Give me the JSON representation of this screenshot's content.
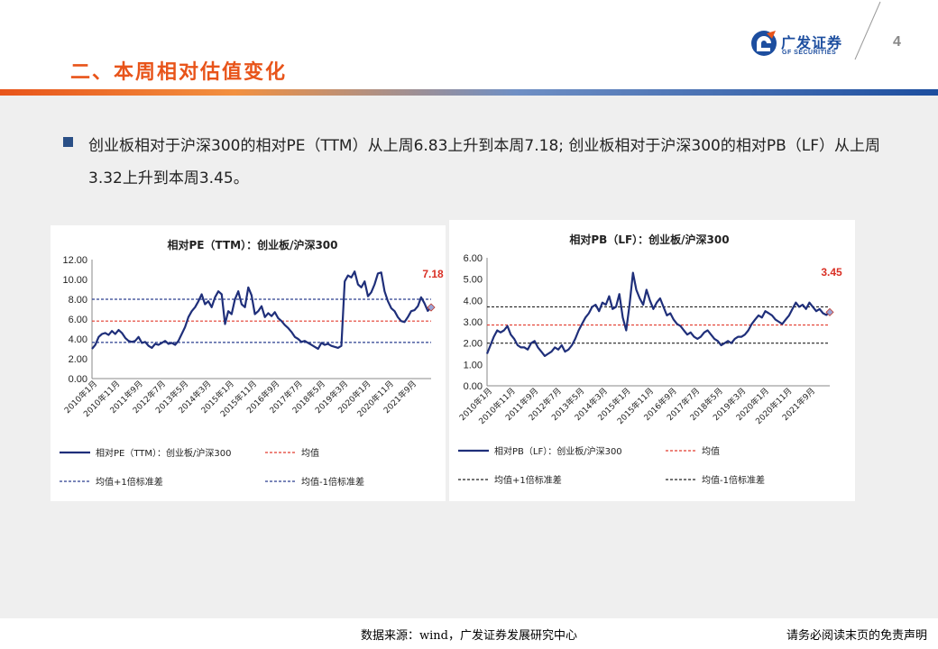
{
  "header": {
    "title": "二、本周相对估值变化",
    "logo_cn": "广发证券",
    "logo_en": "GF SECURITIES",
    "page_number": "4"
  },
  "bullet": {
    "text": "创业板相对于沪深300的相对PE（TTM）从上周6.83上升到本周7.18; 创业板相对于沪深300的相对PB（LF）从上周3.32上升到本周3.45。"
  },
  "footer": {
    "source": "数据来源：wind，广发证券发展研究中心",
    "disclaimer": "请务必阅读末页的免责声明"
  },
  "colors": {
    "brand_orange": "#e8541a",
    "brand_blue": "#1d4e9f",
    "series_navy": "#1f2f7a",
    "mean_red": "#e23b2e",
    "band_navy": "#2a3f8f",
    "band_black": "#222222"
  },
  "chart_data": [
    {
      "type": "line",
      "title": "相对PE（TTM）：创业板/沪深300",
      "x_ticks": [
        "2010年1月",
        "2010年11月",
        "2011年9月",
        "2012年7月",
        "2013年5月",
        "2014年3月",
        "2015年1月",
        "2015年11月",
        "2016年9月",
        "2017年7月",
        "2018年5月",
        "2019年3月",
        "2020年1月",
        "2020年11月",
        "2021年9月"
      ],
      "y_ticks": [
        "0.00",
        "2.00",
        "4.00",
        "6.00",
        "8.00",
        "10.00",
        "12.00"
      ],
      "ylim": [
        0,
        12
      ],
      "last_label": "7.18",
      "last_value": 7.18,
      "mean": 5.8,
      "upper": 8.0,
      "lower": 3.65,
      "series": {
        "name": "相对PE（TTM）：创业板/沪深300",
        "values": [
          3.0,
          3.4,
          4.2,
          4.5,
          4.6,
          4.4,
          4.8,
          4.5,
          4.9,
          4.6,
          4.1,
          3.8,
          3.7,
          3.8,
          4.2,
          3.6,
          3.7,
          3.3,
          3.1,
          3.5,
          3.4,
          3.6,
          3.8,
          3.5,
          3.6,
          3.4,
          3.8,
          4.5,
          5.2,
          6.2,
          6.8,
          7.2,
          7.8,
          8.5,
          7.5,
          7.8,
          7.2,
          8.2,
          8.8,
          8.5,
          5.5,
          6.8,
          6.5,
          8.0,
          8.8,
          7.5,
          7.2,
          9.2,
          8.4,
          6.5,
          6.8,
          7.3,
          6.2,
          6.6,
          6.3,
          6.7,
          6.1,
          5.8,
          5.4,
          5.1,
          4.7,
          4.2,
          4.0,
          3.7,
          3.8,
          3.6,
          3.4,
          3.2,
          3.0,
          3.6,
          3.4,
          3.5,
          3.3,
          3.2,
          3.1,
          3.3,
          9.8,
          10.4,
          10.2,
          10.8,
          9.5,
          9.2,
          9.8,
          8.3,
          8.7,
          9.5,
          10.6,
          10.7,
          8.8,
          7.8,
          7.1,
          6.8,
          6.2,
          5.8,
          5.7,
          6.2,
          6.8,
          6.9,
          7.3,
          8.2,
          7.6,
          6.83,
          7.18
        ]
      },
      "legend": [
        "相对PE（TTM）：创业板/沪深300",
        "均值",
        "均值+1倍标准差",
        "均值-1倍标准差"
      ]
    },
    {
      "type": "line",
      "title": "相对PB（LF）：创业板/沪深300",
      "x_ticks": [
        "2010年1月",
        "2010年11月",
        "2011年9月",
        "2012年7月",
        "2013年5月",
        "2014年3月",
        "2015年1月",
        "2015年11月",
        "2016年9月",
        "2017年7月",
        "2018年5月",
        "2019年3月",
        "2020年1月",
        "2020年11月",
        "2021年9月"
      ],
      "y_ticks": [
        "0.00",
        "1.00",
        "2.00",
        "3.00",
        "4.00",
        "5.00",
        "6.00"
      ],
      "ylim": [
        0,
        6
      ],
      "last_label": "3.45",
      "last_value": 3.45,
      "mean": 2.85,
      "upper": 3.7,
      "lower": 2.0,
      "series": {
        "name": "相对PB（LF）：创业板/沪深300",
        "values": [
          1.5,
          1.9,
          2.3,
          2.6,
          2.5,
          2.6,
          2.8,
          2.4,
          2.2,
          1.9,
          1.8,
          1.8,
          1.7,
          2.0,
          2.1,
          1.8,
          1.6,
          1.4,
          1.5,
          1.6,
          1.8,
          1.7,
          1.9,
          1.6,
          1.7,
          1.9,
          2.2,
          2.6,
          2.9,
          3.2,
          3.4,
          3.7,
          3.8,
          3.5,
          3.9,
          3.8,
          4.2,
          3.6,
          3.7,
          4.3,
          3.2,
          2.6,
          3.8,
          5.3,
          4.5,
          4.1,
          3.8,
          4.5,
          4.0,
          3.6,
          3.9,
          4.1,
          3.7,
          3.3,
          3.4,
          3.1,
          2.9,
          2.8,
          2.6,
          2.4,
          2.5,
          2.3,
          2.2,
          2.3,
          2.5,
          2.6,
          2.4,
          2.2,
          2.1,
          1.9,
          2.0,
          2.1,
          2.0,
          2.2,
          2.3,
          2.3,
          2.4,
          2.6,
          2.9,
          3.1,
          3.3,
          3.2,
          3.5,
          3.4,
          3.3,
          3.1,
          3.0,
          2.9,
          3.1,
          3.3,
          3.6,
          3.9,
          3.7,
          3.8,
          3.6,
          3.9,
          3.7,
          3.5,
          3.6,
          3.4,
          3.32,
          3.45
        ]
      },
      "legend": [
        "相对PB（LF）：创业板/沪深300",
        "均值",
        "均值+1倍标准差",
        "均值-1倍标准差"
      ]
    }
  ]
}
